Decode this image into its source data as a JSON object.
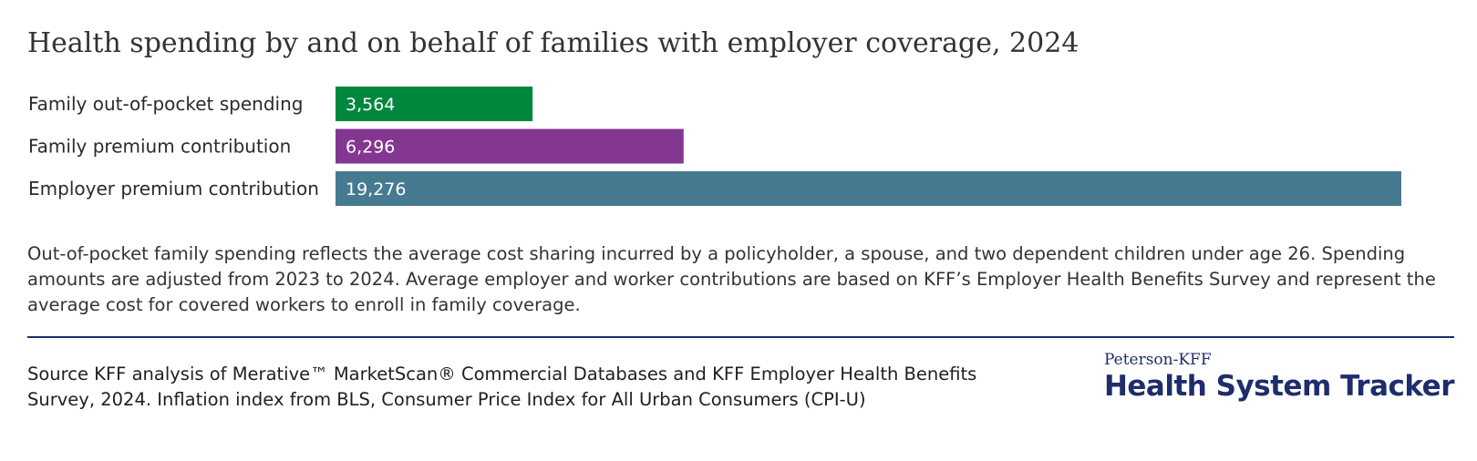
{
  "title": "Health spending by and on behalf of families with employer coverage, 2024",
  "chart_data": {
    "type": "bar",
    "orientation": "horizontal",
    "categories": [
      "Family out-of-pocket spending",
      "Family premium contribution",
      "Employer premium contribution"
    ],
    "values": [
      3564,
      6296,
      19276
    ],
    "value_labels": [
      "3,564",
      "6,296",
      "19,276"
    ],
    "colors": [
      "#00873e",
      "#843790",
      "#467a90"
    ],
    "xlim": [
      0,
      19276
    ],
    "grid": false,
    "legend": "none"
  },
  "note": "Out-of-pocket family spending reflects the average cost sharing incurred by a policyholder, a spouse, and two dependent children under age 26. Spending amounts are adjusted from 2023 to 2024. Average employer and worker contributions are based on KFF’s Employer Health Benefits Survey and represent the average cost for covered workers to enroll in family coverage.",
  "source": "Source KFF analysis of Merative™ MarketScan® Commercial Databases and KFF Employer Health Benefits Survey, 2024. Inflation index from BLS, Consumer Price Index for All Urban Consumers (CPI-U)",
  "brand": {
    "subtitle": "Peterson-KFF",
    "name": "Health System Tracker",
    "color": "#1e2d6b"
  },
  "divider_color": "#1e2d6b"
}
